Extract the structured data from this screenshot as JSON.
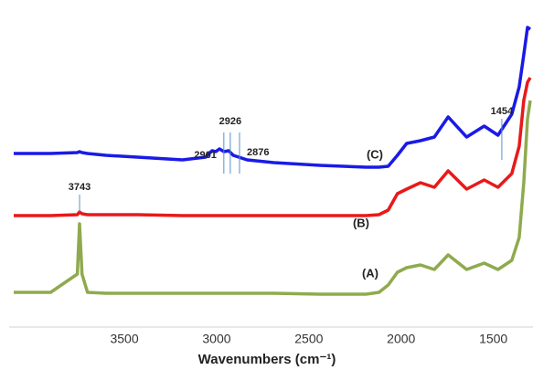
{
  "chart_data": {
    "type": "line",
    "x_label": "Wavenumbers (cm⁻¹)",
    "x": [
      4100,
      3900,
      3755,
      3743,
      3730,
      3700,
      3600,
      3430,
      3185,
      3060,
      3025,
      3005,
      2985,
      2960,
      2935,
      2910,
      2835,
      2690,
      2440,
      2190,
      2120,
      2070,
      2020,
      1970,
      1895,
      1820,
      1745,
      1645,
      1550,
      1475,
      1400,
      1360,
      1335,
      1315,
      1300
    ],
    "xlim": [
      4100,
      1300
    ],
    "xticks": [
      3500,
      3000,
      2500,
      2000,
      1500
    ],
    "ylim": [
      45,
      380
    ],
    "series": [
      {
        "name": "(A)",
        "color": "#8faa4e",
        "values": [
          80,
          80,
          100,
          155,
          100,
          80,
          79,
          79,
          79,
          79,
          79,
          79,
          79,
          79,
          79,
          79,
          79,
          79,
          78,
          78,
          80,
          88,
          102,
          107,
          110,
          105,
          121,
          105,
          112,
          105,
          115,
          140,
          200,
          270,
          290
        ]
      },
      {
        "name": "(B)",
        "color": "#e8191a",
        "values": [
          164,
          164,
          165,
          168,
          166,
          165,
          165,
          165,
          164,
          164,
          164,
          164,
          164,
          164,
          164,
          164,
          164,
          164,
          164,
          164,
          165,
          170,
          188,
          193,
          200,
          195,
          213,
          193,
          203,
          195,
          210,
          240,
          290,
          310,
          315
        ]
      },
      {
        "name": "(C)",
        "color": "#1a1ae6",
        "values": [
          232,
          232,
          233,
          234,
          233,
          232,
          230,
          228,
          225,
          228,
          235,
          234,
          237,
          234,
          235,
          230,
          225,
          222,
          219,
          217,
          217,
          218,
          230,
          243,
          246,
          250,
          272,
          250,
          262,
          252,
          275,
          305,
          340,
          370,
          368
        ]
      }
    ],
    "annotations": [
      {
        "text": "3743",
        "x": 3743
      },
      {
        "text": "2961",
        "x": 2961
      },
      {
        "text": "2926",
        "x": 2926
      },
      {
        "text": "2876",
        "x": 2876
      },
      {
        "text": "1454",
        "x": 1454
      }
    ]
  }
}
